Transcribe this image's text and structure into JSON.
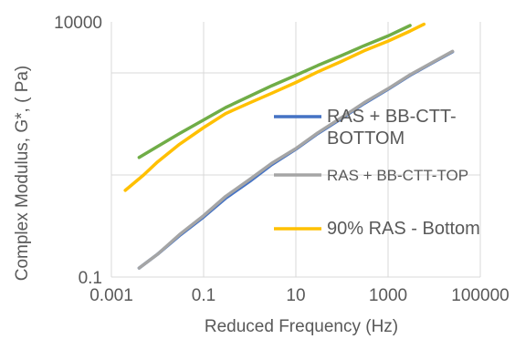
{
  "chart_data": {
    "type": "line",
    "x_scale": "log",
    "y_scale": "log",
    "xlabel": "Reduced Frequency (Hz)",
    "ylabel": "Complex Modulus, G*, ( Pa)",
    "xlim": [
      0.001,
      100000
    ],
    "ylim": [
      0.1,
      10000
    ],
    "x_ticks": [
      0.001,
      0.1,
      10,
      1000,
      100000
    ],
    "x_tick_labels": [
      "0.001",
      "0.1",
      "10",
      "1000",
      "100000"
    ],
    "y_ticks": [
      0.1,
      10000
    ],
    "y_tick_labels": [
      "0.1",
      "10000"
    ],
    "grid": true,
    "legend_position": "right",
    "series": [
      {
        "name": "RAS + BB-CTT-BOTTOM",
        "legend_lines": [
          "RAS + BB-CTT-",
          "BOTTOM"
        ],
        "color": "#4472C4",
        "x": [
          0.004,
          0.01,
          0.03,
          0.1,
          0.3,
          1,
          3,
          10,
          30,
          100,
          300,
          1000,
          3000,
          10000,
          25000
        ],
        "y": [
          0.15,
          0.28,
          0.65,
          1.5,
          3.5,
          7.5,
          16,
          32,
          65,
          130,
          250,
          480,
          900,
          1650,
          2600
        ]
      },
      {
        "name": "RAS + BB-CTT-TOP",
        "legend_lines": [
          "RAS + BB-CTT-TOP"
        ],
        "color": "#A5A5A5",
        "x": [
          0.004,
          0.01,
          0.03,
          0.1,
          0.3,
          1,
          3,
          10,
          30,
          100,
          300,
          1000,
          3000,
          10000,
          25000
        ],
        "y": [
          0.15,
          0.28,
          0.68,
          1.6,
          3.8,
          8.2,
          17,
          33,
          67,
          135,
          260,
          490,
          920,
          1680,
          2650
        ]
      },
      {
        "name": "90% RAS - Bottom",
        "legend_lines": [
          "90% RAS - Bottom"
        ],
        "color": "#FFC000",
        "x": [
          0.002,
          0.005,
          0.01,
          0.03,
          0.1,
          0.3,
          1,
          3,
          10,
          30,
          100,
          300,
          1000,
          3000,
          6000
        ],
        "y": [
          5,
          10,
          18,
          40,
          85,
          160,
          260,
          400,
          650,
          1050,
          1700,
          2700,
          4200,
          6600,
          9000
        ]
      },
      {
        "name": "",
        "color": "#70AD47",
        "x": [
          0.004,
          0.01,
          0.03,
          0.1,
          0.3,
          1,
          3,
          10,
          30,
          100,
          300,
          1000,
          3000
        ],
        "y": [
          22,
          36,
          65,
          120,
          210,
          350,
          560,
          900,
          1400,
          2200,
          3400,
          5300,
          8500
        ]
      }
    ]
  }
}
